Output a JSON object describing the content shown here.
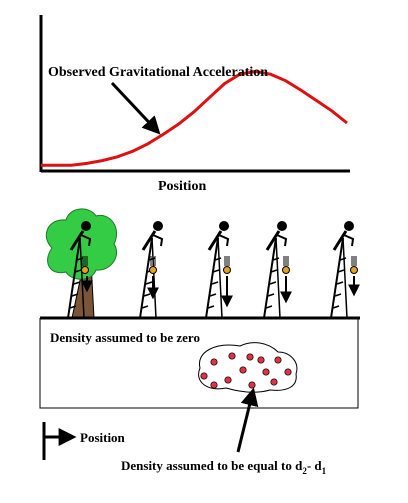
{
  "figure": {
    "curve_label": "Observed Gravitational Acceleration",
    "axis_label": "Position",
    "body_label": "Density assumed to be zero",
    "legend_label": "Position",
    "density_label_prefix": "Density assumed to be equal to ",
    "density_d2": "d",
    "density_d2_sub": "2",
    "density_minus": "- ",
    "density_d1": "d",
    "density_d1_sub": "1"
  },
  "chart_data": {
    "type": "line",
    "title": "",
    "xlabel": "Position",
    "ylabel": "",
    "series": [
      {
        "name": "Observed Gravitational Acceleration",
        "x": [
          0,
          5,
          10,
          15,
          20,
          25,
          30,
          35,
          40,
          45,
          50,
          55,
          60,
          65,
          70,
          75,
          80,
          85,
          90,
          95,
          100
        ],
        "y": [
          0.0,
          0.0,
          0.0,
          0.02,
          0.05,
          0.09,
          0.15,
          0.23,
          0.33,
          0.44,
          0.57,
          0.72,
          0.87,
          0.97,
          1.0,
          0.97,
          0.9,
          0.8,
          0.69,
          0.58,
          0.45
        ]
      }
    ],
    "xlim": [
      0,
      100
    ],
    "ylim": [
      -0.05,
      1.6
    ],
    "grid": false,
    "line_color": "#dd1111"
  },
  "colors": {
    "curve": "#dd1111",
    "tree_foliage": "#33cc44",
    "tree_trunk": "#7a5538",
    "dense_dot": "#dd3344",
    "falling_ball": "#e6a020"
  },
  "icons": {
    "observer": "person-on-ladder-icon",
    "tree": "tree-icon",
    "arrow": "down-arrow-icon"
  }
}
